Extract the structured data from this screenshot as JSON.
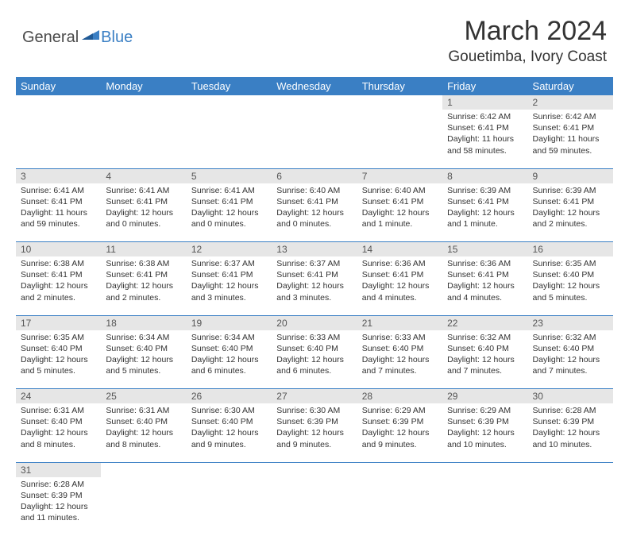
{
  "logo": {
    "text_main": "General",
    "text_blue": "Blue"
  },
  "title": "March 2024",
  "location": "Gouetimba, Ivory Coast",
  "colors": {
    "header_bg": "#3a7fc4",
    "header_fg": "#ffffff",
    "daynum_bg": "#e6e6e6",
    "text": "#333333",
    "rule": "#3a7fc4"
  },
  "weekdays": [
    "Sunday",
    "Monday",
    "Tuesday",
    "Wednesday",
    "Thursday",
    "Friday",
    "Saturday"
  ],
  "weeks": [
    [
      null,
      null,
      null,
      null,
      null,
      {
        "n": "1",
        "sr": "Sunrise: 6:42 AM",
        "ss": "Sunset: 6:41 PM",
        "dl": "Daylight: 11 hours and 58 minutes."
      },
      {
        "n": "2",
        "sr": "Sunrise: 6:42 AM",
        "ss": "Sunset: 6:41 PM",
        "dl": "Daylight: 11 hours and 59 minutes."
      }
    ],
    [
      {
        "n": "3",
        "sr": "Sunrise: 6:41 AM",
        "ss": "Sunset: 6:41 PM",
        "dl": "Daylight: 11 hours and 59 minutes."
      },
      {
        "n": "4",
        "sr": "Sunrise: 6:41 AM",
        "ss": "Sunset: 6:41 PM",
        "dl": "Daylight: 12 hours and 0 minutes."
      },
      {
        "n": "5",
        "sr": "Sunrise: 6:41 AM",
        "ss": "Sunset: 6:41 PM",
        "dl": "Daylight: 12 hours and 0 minutes."
      },
      {
        "n": "6",
        "sr": "Sunrise: 6:40 AM",
        "ss": "Sunset: 6:41 PM",
        "dl": "Daylight: 12 hours and 0 minutes."
      },
      {
        "n": "7",
        "sr": "Sunrise: 6:40 AM",
        "ss": "Sunset: 6:41 PM",
        "dl": "Daylight: 12 hours and 1 minute."
      },
      {
        "n": "8",
        "sr": "Sunrise: 6:39 AM",
        "ss": "Sunset: 6:41 PM",
        "dl": "Daylight: 12 hours and 1 minute."
      },
      {
        "n": "9",
        "sr": "Sunrise: 6:39 AM",
        "ss": "Sunset: 6:41 PM",
        "dl": "Daylight: 12 hours and 2 minutes."
      }
    ],
    [
      {
        "n": "10",
        "sr": "Sunrise: 6:38 AM",
        "ss": "Sunset: 6:41 PM",
        "dl": "Daylight: 12 hours and 2 minutes."
      },
      {
        "n": "11",
        "sr": "Sunrise: 6:38 AM",
        "ss": "Sunset: 6:41 PM",
        "dl": "Daylight: 12 hours and 2 minutes."
      },
      {
        "n": "12",
        "sr": "Sunrise: 6:37 AM",
        "ss": "Sunset: 6:41 PM",
        "dl": "Daylight: 12 hours and 3 minutes."
      },
      {
        "n": "13",
        "sr": "Sunrise: 6:37 AM",
        "ss": "Sunset: 6:41 PM",
        "dl": "Daylight: 12 hours and 3 minutes."
      },
      {
        "n": "14",
        "sr": "Sunrise: 6:36 AM",
        "ss": "Sunset: 6:41 PM",
        "dl": "Daylight: 12 hours and 4 minutes."
      },
      {
        "n": "15",
        "sr": "Sunrise: 6:36 AM",
        "ss": "Sunset: 6:41 PM",
        "dl": "Daylight: 12 hours and 4 minutes."
      },
      {
        "n": "16",
        "sr": "Sunrise: 6:35 AM",
        "ss": "Sunset: 6:40 PM",
        "dl": "Daylight: 12 hours and 5 minutes."
      }
    ],
    [
      {
        "n": "17",
        "sr": "Sunrise: 6:35 AM",
        "ss": "Sunset: 6:40 PM",
        "dl": "Daylight: 12 hours and 5 minutes."
      },
      {
        "n": "18",
        "sr": "Sunrise: 6:34 AM",
        "ss": "Sunset: 6:40 PM",
        "dl": "Daylight: 12 hours and 5 minutes."
      },
      {
        "n": "19",
        "sr": "Sunrise: 6:34 AM",
        "ss": "Sunset: 6:40 PM",
        "dl": "Daylight: 12 hours and 6 minutes."
      },
      {
        "n": "20",
        "sr": "Sunrise: 6:33 AM",
        "ss": "Sunset: 6:40 PM",
        "dl": "Daylight: 12 hours and 6 minutes."
      },
      {
        "n": "21",
        "sr": "Sunrise: 6:33 AM",
        "ss": "Sunset: 6:40 PM",
        "dl": "Daylight: 12 hours and 7 minutes."
      },
      {
        "n": "22",
        "sr": "Sunrise: 6:32 AM",
        "ss": "Sunset: 6:40 PM",
        "dl": "Daylight: 12 hours and 7 minutes."
      },
      {
        "n": "23",
        "sr": "Sunrise: 6:32 AM",
        "ss": "Sunset: 6:40 PM",
        "dl": "Daylight: 12 hours and 7 minutes."
      }
    ],
    [
      {
        "n": "24",
        "sr": "Sunrise: 6:31 AM",
        "ss": "Sunset: 6:40 PM",
        "dl": "Daylight: 12 hours and 8 minutes."
      },
      {
        "n": "25",
        "sr": "Sunrise: 6:31 AM",
        "ss": "Sunset: 6:40 PM",
        "dl": "Daylight: 12 hours and 8 minutes."
      },
      {
        "n": "26",
        "sr": "Sunrise: 6:30 AM",
        "ss": "Sunset: 6:40 PM",
        "dl": "Daylight: 12 hours and 9 minutes."
      },
      {
        "n": "27",
        "sr": "Sunrise: 6:30 AM",
        "ss": "Sunset: 6:39 PM",
        "dl": "Daylight: 12 hours and 9 minutes."
      },
      {
        "n": "28",
        "sr": "Sunrise: 6:29 AM",
        "ss": "Sunset: 6:39 PM",
        "dl": "Daylight: 12 hours and 9 minutes."
      },
      {
        "n": "29",
        "sr": "Sunrise: 6:29 AM",
        "ss": "Sunset: 6:39 PM",
        "dl": "Daylight: 12 hours and 10 minutes."
      },
      {
        "n": "30",
        "sr": "Sunrise: 6:28 AM",
        "ss": "Sunset: 6:39 PM",
        "dl": "Daylight: 12 hours and 10 minutes."
      }
    ],
    [
      {
        "n": "31",
        "sr": "Sunrise: 6:28 AM",
        "ss": "Sunset: 6:39 PM",
        "dl": "Daylight: 12 hours and 11 minutes."
      },
      null,
      null,
      null,
      null,
      null,
      null
    ]
  ]
}
